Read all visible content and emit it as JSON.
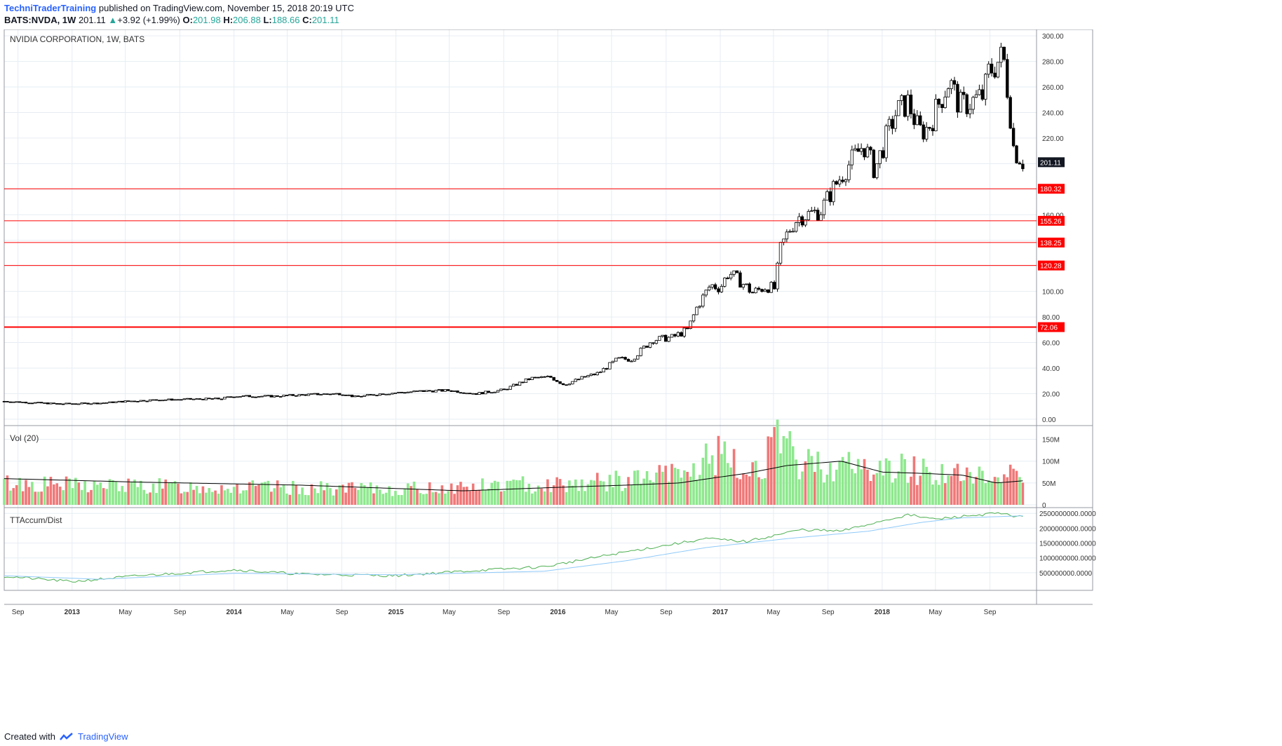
{
  "header": {
    "author": "TechniTraderTraining",
    "published": "published on TradingView.com, November 15, 2018 20:19 UTC",
    "symbol": "BATS:NVDA, 1W",
    "last": "201.11",
    "change": "+3.92 (+1.99%)",
    "open_label": "O:",
    "open": "201.98",
    "high_label": "H:",
    "high": "206.88",
    "low_label": "L:",
    "low": "188.66",
    "close_label": "C:",
    "close": "201.11"
  },
  "footer": {
    "created": "Created with",
    "brand": "TradingView"
  },
  "colors": {
    "candle": "#000000",
    "hline": "#ff0000",
    "vol_up": "#8ee88e",
    "vol_down": "#f07878",
    "vol_ma": "#000000",
    "accum": "#4caf50",
    "accum_ma": "#90caf9",
    "grid": "#e6edf3"
  },
  "chart_data": [
    {
      "type": "candlestick",
      "title": "NVIDIA CORPORATION, 1W, BATS",
      "ylim": [
        -5,
        305
      ],
      "yticks": [
        0,
        20,
        40,
        60,
        80,
        100,
        120,
        140,
        160,
        180,
        200,
        220,
        240,
        260,
        280,
        300
      ],
      "ytick_labels": [
        "0.00",
        "20.00",
        "40.00",
        "60.00",
        "80.00",
        "100.00",
        "120.00",
        "140.00",
        "160.00",
        "180.00",
        "200.00",
        "220.00",
        "240.00",
        "260.00",
        "280.00",
        "300.00"
      ],
      "last_price_label": "201.11",
      "price_path": [
        [
          "2012-08-01",
          14
        ],
        [
          "2012-10-01",
          13
        ],
        [
          "2012-12-01",
          12
        ],
        [
          "2013-03-01",
          12.5
        ],
        [
          "2013-05-01",
          14
        ],
        [
          "2013-07-01",
          15
        ],
        [
          "2013-09-01",
          15.5
        ],
        [
          "2013-12-01",
          16
        ],
        [
          "2014-01-01",
          18
        ],
        [
          "2014-04-01",
          18
        ],
        [
          "2014-07-01",
          19.5
        ],
        [
          "2014-09-01",
          20
        ],
        [
          "2014-10-01",
          17.5
        ],
        [
          "2014-12-01",
          20
        ],
        [
          "2015-03-01",
          22
        ],
        [
          "2015-05-01",
          22.5
        ],
        [
          "2015-07-01",
          20
        ],
        [
          "2015-09-01",
          23
        ],
        [
          "2015-11-01",
          32
        ],
        [
          "2015-12-15",
          33
        ],
        [
          "2016-01-15",
          27
        ],
        [
          "2016-03-01",
          33
        ],
        [
          "2016-04-01",
          36
        ],
        [
          "2016-05-15",
          47
        ],
        [
          "2016-06-15",
          47
        ],
        [
          "2016-08-01",
          62
        ],
        [
          "2016-09-15",
          64
        ],
        [
          "2016-10-20",
          70
        ],
        [
          "2016-11-10",
          88
        ],
        [
          "2016-12-10",
          105
        ],
        [
          "2017-01-01",
          103
        ],
        [
          "2017-01-20",
          115
        ],
        [
          "2017-02-15",
          108
        ],
        [
          "2017-03-15",
          99
        ],
        [
          "2017-04-15",
          104
        ],
        [
          "2017-05-05",
          102
        ],
        [
          "2017-05-15",
          132
        ],
        [
          "2017-06-05",
          148
        ],
        [
          "2017-06-25",
          158
        ],
        [
          "2017-08-15",
          163
        ],
        [
          "2017-09-15",
          182
        ],
        [
          "2017-10-15",
          198
        ],
        [
          "2017-11-20",
          215
        ],
        [
          "2017-12-15",
          195
        ],
        [
          "2018-01-10",
          220
        ],
        [
          "2018-02-01",
          240
        ],
        [
          "2018-03-01",
          248
        ],
        [
          "2018-03-25",
          225
        ],
        [
          "2018-04-15",
          228
        ],
        [
          "2018-05-15",
          252
        ],
        [
          "2018-06-01",
          265
        ],
        [
          "2018-06-25",
          245
        ],
        [
          "2018-07-20",
          248
        ],
        [
          "2018-08-20",
          254
        ],
        [
          "2018-08-25",
          270
        ],
        [
          "2018-09-15",
          278
        ],
        [
          "2018-10-01",
          285
        ],
        [
          "2018-10-15",
          245
        ],
        [
          "2018-10-25",
          210
        ],
        [
          "2018-11-08",
          205
        ],
        [
          "2018-11-15",
          201.11
        ]
      ],
      "horizontal_levels": [
        180.32,
        155.26,
        138.25,
        120.28,
        72.06
      ],
      "level_labels": [
        "180.32",
        "155.26",
        "138.25",
        "120.28",
        "72.06"
      ],
      "x_ticks": [
        {
          "date": "2012-09-01",
          "label": "Sep"
        },
        {
          "date": "2013-01-01",
          "label": "2013"
        },
        {
          "date": "2013-05-01",
          "label": "May"
        },
        {
          "date": "2013-09-01",
          "label": "Sep"
        },
        {
          "date": "2014-01-01",
          "label": "2014"
        },
        {
          "date": "2014-05-01",
          "label": "May"
        },
        {
          "date": "2014-09-01",
          "label": "Sep"
        },
        {
          "date": "2015-01-01",
          "label": "2015"
        },
        {
          "date": "2015-05-01",
          "label": "May"
        },
        {
          "date": "2015-09-01",
          "label": "Sep"
        },
        {
          "date": "2016-01-01",
          "label": "2016"
        },
        {
          "date": "2016-05-01",
          "label": "May"
        },
        {
          "date": "2016-09-01",
          "label": "Sep"
        },
        {
          "date": "2017-01-01",
          "label": "2017"
        },
        {
          "date": "2017-05-01",
          "label": "May"
        },
        {
          "date": "2017-09-01",
          "label": "Sep"
        },
        {
          "date": "2018-01-01",
          "label": "2018"
        },
        {
          "date": "2018-05-01",
          "label": "May"
        },
        {
          "date": "2018-09-01",
          "label": "Sep"
        }
      ]
    },
    {
      "type": "bar",
      "title": "Vol (20)",
      "ylim": [
        0,
        175
      ],
      "yticks": [
        0,
        50,
        100,
        150
      ],
      "ytick_labels": [
        "0",
        "50M",
        "100M",
        "150M"
      ],
      "volume_path": [
        [
          "2012-08-01",
          50
        ],
        [
          "2013-01-01",
          45
        ],
        [
          "2014-01-01",
          40
        ],
        [
          "2015-01-01",
          35
        ],
        [
          "2015-09-01",
          45
        ],
        [
          "2016-01-01",
          48
        ],
        [
          "2016-06-01",
          55
        ],
        [
          "2016-11-01",
          75
        ],
        [
          "2016-12-15",
          120
        ],
        [
          "2017-03-01",
          70
        ],
        [
          "2017-05-15",
          140
        ],
        [
          "2017-07-01",
          95
        ],
        [
          "2017-10-01",
          90
        ],
        [
          "2018-01-01",
          80
        ],
        [
          "2018-03-01",
          85
        ],
        [
          "2018-06-01",
          70
        ],
        [
          "2018-09-01",
          60
        ],
        [
          "2018-11-01",
          80
        ]
      ],
      "ma_path": [
        [
          "2012-08-01",
          60
        ],
        [
          "2013-06-01",
          52
        ],
        [
          "2014-06-01",
          45
        ],
        [
          "2015-06-01",
          32
        ],
        [
          "2016-01-01",
          40
        ],
        [
          "2016-06-01",
          45
        ],
        [
          "2016-10-01",
          50
        ],
        [
          "2016-12-20",
          62
        ],
        [
          "2017-03-01",
          72
        ],
        [
          "2017-06-01",
          90
        ],
        [
          "2017-10-01",
          100
        ],
        [
          "2018-01-01",
          75
        ],
        [
          "2018-04-01",
          72
        ],
        [
          "2018-07-01",
          68
        ],
        [
          "2018-09-15",
          50
        ],
        [
          "2018-11-15",
          55
        ]
      ]
    },
    {
      "type": "line",
      "title": "TTAccum/Dist",
      "ylim": [
        0,
        2600000000
      ],
      "yticks": [
        500000000,
        1000000000,
        1500000000,
        2000000000,
        2500000000
      ],
      "ytick_labels": [
        "500000000.0000",
        "1000000000.0000",
        "1500000000.0000",
        "2000000000.0000",
        "2500000000.0000"
      ],
      "series": [
        {
          "values": [
            [
              "2012-08-01",
              380000000
            ],
            [
              "2013-01-01",
              200000000
            ],
            [
              "2013-06-01",
              400000000
            ],
            [
              "2014-01-01",
              600000000
            ],
            [
              "2014-06-01",
              450000000
            ],
            [
              "2015-01-01",
              400000000
            ],
            [
              "2015-06-01",
              550000000
            ],
            [
              "2015-12-01",
              700000000
            ],
            [
              "2016-06-01",
              1200000000
            ],
            [
              "2016-12-01",
              1650000000
            ],
            [
              "2017-03-01",
              1550000000
            ],
            [
              "2017-07-01",
              1950000000
            ],
            [
              "2017-10-01",
              1900000000
            ],
            [
              "2018-01-01",
              2250000000
            ],
            [
              "2018-03-01",
              2450000000
            ],
            [
              "2018-05-01",
              2300000000
            ],
            [
              "2018-07-01",
              2400000000
            ],
            [
              "2018-09-15",
              2500000000
            ],
            [
              "2018-11-15",
              2380000000
            ]
          ]
        },
        {
          "values": [
            [
              "2012-08-01",
              400000000
            ],
            [
              "2013-03-01",
              280000000
            ],
            [
              "2014-01-01",
              480000000
            ],
            [
              "2015-01-01",
              430000000
            ],
            [
              "2015-12-01",
              550000000
            ],
            [
              "2016-06-01",
              900000000
            ],
            [
              "2016-12-01",
              1350000000
            ],
            [
              "2017-06-01",
              1650000000
            ],
            [
              "2017-12-01",
              1900000000
            ],
            [
              "2018-04-01",
              2200000000
            ],
            [
              "2018-07-01",
              2350000000
            ],
            [
              "2018-11-15",
              2420000000
            ]
          ]
        }
      ]
    }
  ]
}
